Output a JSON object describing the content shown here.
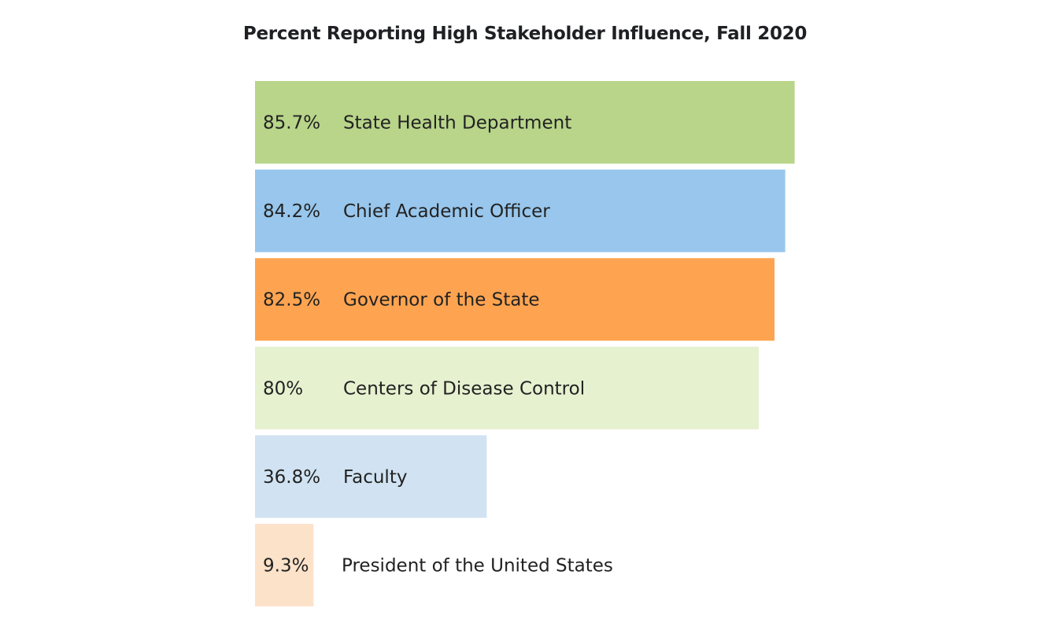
{
  "chart_data": {
    "type": "bar",
    "orientation": "horizontal",
    "title": "Percent Reporting High Stakeholder Influence, Fall 2020",
    "xlabel": "",
    "ylabel": "",
    "xlim": [
      0,
      100
    ],
    "grid": false,
    "legend": "none",
    "categories": [
      "State Health Department",
      "Chief Academic Officer",
      "Governor of the State",
      "Centers of Disease Control",
      "Faculty",
      "President of the United States"
    ],
    "values": [
      85.7,
      84.2,
      82.5,
      80,
      36.8,
      9.3
    ],
    "value_labels": [
      "85.7%",
      "84.2%",
      "82.5%",
      "80%",
      "36.8%",
      "9.3%"
    ],
    "colors": [
      "#b8d58a",
      "#98c6ec",
      "#fea451",
      "#e6f1d0",
      "#d1e3f2",
      "#fde2ca"
    ]
  }
}
